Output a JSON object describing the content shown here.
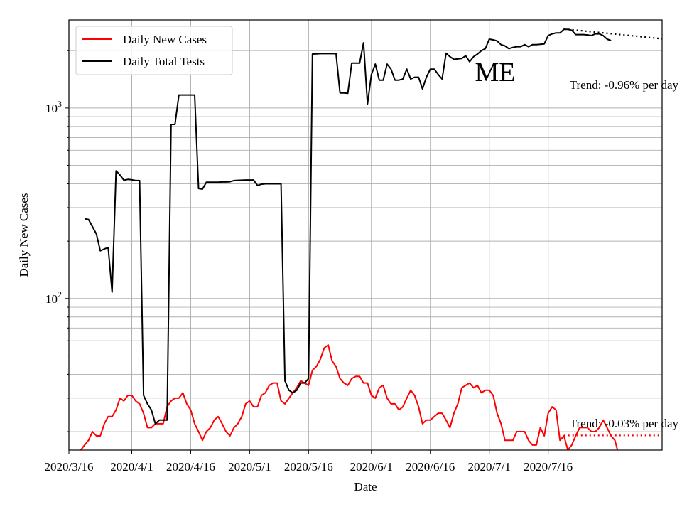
{
  "chart_data": {
    "type": "line",
    "title": "ME",
    "xlabel": "Date",
    "ylabel": "Daily New Cases",
    "yscale": "log",
    "ylim": [
      16,
      2900
    ],
    "x_start": "2020-03-16",
    "x_end": "2020-08-14",
    "x_ticks": [
      "2020-03-16",
      "2020-04-01",
      "2020-04-16",
      "2020-05-01",
      "2020-05-16",
      "2020-06-01",
      "2020-06-16",
      "2020-07-01",
      "2020-07-16"
    ],
    "x_tick_labels": [
      "2020/3/16",
      "2020/4/1",
      "2020/4/16",
      "2020/5/1",
      "2020/5/16",
      "2020/6/1",
      "2020/6/16",
      "2020/7/1",
      "2020/7/16"
    ],
    "y_tick_labels": [
      {
        "value": 100,
        "base": "10",
        "exp": "2"
      },
      {
        "value": 1000,
        "base": "10",
        "exp": "3"
      }
    ],
    "grid": true,
    "legend_position": "top-left",
    "series": [
      {
        "name": "Daily New Cases",
        "color": "#ff0000",
        "start": "2020-03-19",
        "values": [
          16,
          17,
          18,
          20,
          19,
          19,
          22,
          24,
          24,
          26,
          30,
          29,
          31,
          31,
          29,
          28,
          25,
          21,
          21,
          22,
          22,
          22,
          27,
          29,
          30,
          30,
          32,
          28,
          26,
          22,
          20,
          18,
          20,
          21,
          23,
          24,
          22,
          20,
          19,
          21,
          22,
          24,
          28,
          29,
          27,
          27,
          31,
          32,
          35,
          36,
          36,
          29,
          28,
          30,
          32,
          34,
          37,
          36,
          35,
          42,
          44,
          48,
          55,
          57,
          47,
          44,
          38,
          36,
          35,
          38,
          39,
          39,
          36,
          36,
          31,
          30,
          34,
          35,
          30,
          28,
          28,
          26,
          27,
          30,
          33,
          31,
          27,
          22,
          23,
          23,
          24,
          25,
          25,
          23,
          21,
          25,
          28,
          34,
          35,
          36,
          34,
          35,
          32,
          33,
          33,
          31,
          25,
          22,
          18,
          18,
          18,
          20,
          20,
          20,
          18,
          17,
          17,
          21,
          19,
          25,
          27,
          26,
          18,
          19,
          16,
          17,
          19,
          21,
          21,
          21,
          20,
          20,
          21,
          23,
          21,
          19,
          18,
          15
        ],
        "trend": {
          "label": "Trend: -0.03% per day",
          "start": "2020-07-20",
          "end": "2020-08-14",
          "value": 19.1
        }
      },
      {
        "name": "Daily Total Tests",
        "color": "#000000",
        "start": "2020-03-20",
        "values": [
          262,
          260,
          238,
          218,
          178,
          182,
          185,
          108,
          468,
          445,
          418,
          422,
          420,
          416,
          416,
          31,
          28,
          26,
          22,
          23,
          23,
          23,
          820,
          820,
          1170,
          1170,
          1170,
          1170,
          1170,
          378,
          375,
          408,
          408,
          408,
          408,
          409,
          409,
          410,
          416,
          417,
          418,
          419,
          419,
          419,
          392,
          398,
          400,
          400,
          400,
          400,
          400,
          37,
          33,
          32,
          33,
          36,
          36,
          38,
          1920,
          1925,
          1930,
          1930,
          1930,
          1930,
          1930,
          1200,
          1200,
          1195,
          1720,
          1720,
          1720,
          2200,
          1050,
          1500,
          1700,
          1400,
          1400,
          1700,
          1600,
          1400,
          1400,
          1420,
          1600,
          1420,
          1450,
          1450,
          1260,
          1450,
          1600,
          1600,
          1500,
          1420,
          1940,
          1860,
          1800,
          1810,
          1820,
          1880,
          1750,
          1860,
          1920,
          2000,
          2050,
          2300,
          2280,
          2250,
          2150,
          2120,
          2050,
          2080,
          2100,
          2100,
          2150,
          2100,
          2150,
          2150,
          2160,
          2170,
          2400,
          2450,
          2480,
          2480,
          2590,
          2590,
          2560,
          2430,
          2430,
          2430,
          2420,
          2400,
          2450,
          2450,
          2400,
          2300,
          2260
        ],
        "trend": {
          "label": "Trend: -0.96% per day",
          "start": "2020-07-20",
          "end": "2020-08-14",
          "value_start": 2600,
          "value_end": 2310
        }
      }
    ]
  }
}
